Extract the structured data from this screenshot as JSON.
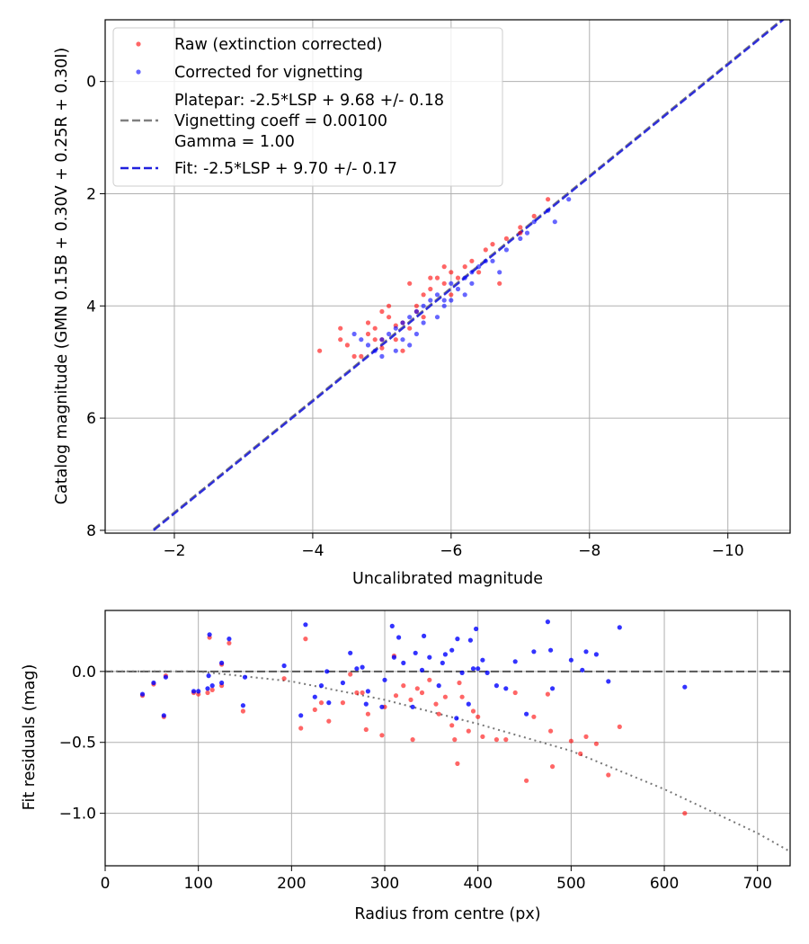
{
  "colors": {
    "raw": "#ff0000",
    "corrected": "#0000ff",
    "platepar_line": "#808080",
    "fit_line": "#2020dd",
    "grid": "#b0b0b0"
  },
  "chart_data": [
    {
      "type": "scatter",
      "id": "calibration",
      "xlabel": "Uncalibrated magnitude",
      "ylabel": "Catalog magnitude (GMN 0.15B + 0.30V + 0.25R + 0.30I)",
      "xlim": [
        -1.0,
        -10.9
      ],
      "ylim": [
        8.05,
        -1.1
      ],
      "xticks": [
        -2,
        -4,
        -6,
        -8,
        -10
      ],
      "xtick_labels": [
        "−2",
        "−4",
        "−6",
        "−8",
        "−10"
      ],
      "yticks": [
        0,
        2,
        4,
        6,
        8
      ],
      "ytick_labels": [
        "0",
        "2",
        "4",
        "6",
        "8"
      ],
      "grid": true,
      "legend_position": "upper-left",
      "legend": [
        {
          "key": "raw",
          "kind": "marker",
          "lines": [
            "Raw (extinction corrected)"
          ]
        },
        {
          "key": "corrected",
          "kind": "marker",
          "lines": [
            "Corrected for vignetting"
          ]
        },
        {
          "key": "platepar",
          "kind": "dashed-line",
          "lines": [
            "Platepar: -2.5*LSP + 9.68 +/- 0.18",
            "Vignetting coeff = 0.00100",
            "Gamma = 1.00"
          ]
        },
        {
          "key": "fit",
          "kind": "dashed-line",
          "lines": [
            "Fit: -2.5*LSP + 9.70 +/- 0.17"
          ]
        }
      ],
      "lines": [
        {
          "name": "Platepar",
          "x": [
            -1.7,
            -10.88
          ],
          "y": [
            7.98,
            -1.2
          ]
        },
        {
          "name": "Fit",
          "x": [
            -1.7,
            -10.88
          ],
          "y": [
            8.0,
            -1.18
          ]
        }
      ],
      "series": [
        {
          "name": "Raw (extinction corrected)",
          "points": [
            [
              -4.1,
              4.8
            ],
            [
              -4.4,
              4.6
            ],
            [
              -4.5,
              4.7
            ],
            [
              -4.6,
              4.9
            ],
            [
              -4.4,
              4.4
            ],
            [
              -4.8,
              4.5
            ],
            [
              -4.9,
              4.4
            ],
            [
              -5.0,
              4.6
            ],
            [
              -4.8,
              4.3
            ],
            [
              -5.0,
              4.1
            ],
            [
              -5.1,
              4.2
            ],
            [
              -5.2,
              4.35
            ],
            [
              -5.3,
              4.3
            ],
            [
              -5.5,
              4.0
            ],
            [
              -5.6,
              3.8
            ],
            [
              -5.7,
              3.7
            ],
            [
              -5.9,
              3.6
            ],
            [
              -6.0,
              3.4
            ],
            [
              -6.1,
              3.5
            ],
            [
              -6.2,
              3.3
            ],
            [
              -6.3,
              3.2
            ],
            [
              -6.5,
              3.0
            ],
            [
              -6.6,
              2.9
            ],
            [
              -6.8,
              2.8
            ],
            [
              -7.0,
              2.6
            ],
            [
              -7.2,
              2.4
            ],
            [
              -7.4,
              2.1
            ],
            [
              -5.4,
              3.6
            ],
            [
              -5.1,
              4.0
            ],
            [
              -5.2,
              4.6
            ],
            [
              -5.3,
              4.8
            ],
            [
              -5.6,
              4.2
            ],
            [
              -5.8,
              3.5
            ],
            [
              -6.0,
              3.8
            ],
            [
              -4.7,
              4.9
            ],
            [
              -5.4,
              4.4
            ],
            [
              -5.9,
              3.3
            ],
            [
              -6.4,
              3.4
            ],
            [
              -6.7,
              3.6
            ],
            [
              -7.0,
              2.7
            ],
            [
              -5.0,
              4.75
            ],
            [
              -5.5,
              4.1
            ],
            [
              -5.7,
              3.5
            ],
            [
              -4.9,
              4.6
            ]
          ]
        },
        {
          "name": "Corrected for vignetting",
          "points": [
            [
              -4.6,
              4.5
            ],
            [
              -4.8,
              4.7
            ],
            [
              -5.0,
              4.6
            ],
            [
              -5.1,
              4.5
            ],
            [
              -5.2,
              4.4
            ],
            [
              -5.3,
              4.3
            ],
            [
              -5.4,
              4.2
            ],
            [
              -5.5,
              4.1
            ],
            [
              -5.6,
              4.0
            ],
            [
              -5.7,
              3.9
            ],
            [
              -5.8,
              3.8
            ],
            [
              -5.9,
              3.9
            ],
            [
              -6.0,
              3.6
            ],
            [
              -6.1,
              3.7
            ],
            [
              -6.2,
              3.5
            ],
            [
              -6.3,
              3.4
            ],
            [
              -6.4,
              3.3
            ],
            [
              -6.6,
              3.2
            ],
            [
              -6.8,
              3.0
            ],
            [
              -7.0,
              2.8
            ],
            [
              -7.2,
              2.5
            ],
            [
              -7.4,
              2.3
            ],
            [
              -7.7,
              2.1
            ],
            [
              -4.9,
              4.8
            ],
            [
              -5.2,
              4.8
            ],
            [
              -5.5,
              4.5
            ],
            [
              -5.8,
              4.2
            ],
            [
              -6.3,
              3.6
            ],
            [
              -6.7,
              3.4
            ],
            [
              -5.0,
              4.9
            ],
            [
              -5.3,
              4.6
            ],
            [
              -5.6,
              4.3
            ],
            [
              -6.0,
              3.9
            ],
            [
              -6.5,
              3.2
            ],
            [
              -7.1,
              2.7
            ],
            [
              -4.7,
              4.6
            ],
            [
              -5.4,
              4.7
            ],
            [
              -5.9,
              4.0
            ],
            [
              -6.2,
              3.8
            ],
            [
              -7.5,
              2.5
            ]
          ]
        }
      ]
    },
    {
      "type": "scatter",
      "id": "residuals",
      "xlabel": "Radius from centre (px)",
      "ylabel": "Fit residuals (mag)",
      "xlim": [
        0,
        735
      ],
      "ylim": [
        -1.37,
        0.43
      ],
      "xticks": [
        0,
        100,
        200,
        300,
        400,
        500,
        600,
        700
      ],
      "xtick_labels": [
        "0",
        "100",
        "200",
        "300",
        "400",
        "500",
        "600",
        "700"
      ],
      "yticks": [
        0.0,
        -0.5,
        -1.0
      ],
      "ytick_labels": [
        "0.0",
        "−0.5",
        "−1.0"
      ],
      "grid": true,
      "reference_line": {
        "name": "zero",
        "y": 0.0
      },
      "curve": {
        "name": "vignetting model",
        "x": [
          0,
          100,
          200,
          300,
          400,
          500,
          600,
          700,
          735
        ],
        "y": [
          0.0,
          0.0,
          -0.07,
          -0.2,
          -0.37,
          -0.56,
          -0.83,
          -1.14,
          -1.27
        ]
      },
      "series": [
        {
          "name": "Raw (extinction corrected)",
          "points": [
            [
              40,
              -0.17
            ],
            [
              52,
              -0.09
            ],
            [
              63,
              -0.32
            ],
            [
              65,
              -0.03
            ],
            [
              95,
              -0.15
            ],
            [
              100,
              -0.16
            ],
            [
              110,
              -0.15
            ],
            [
              112,
              0.24
            ],
            [
              115,
              -0.13
            ],
            [
              125,
              -0.1
            ],
            [
              125,
              0.05
            ],
            [
              133,
              0.2
            ],
            [
              148,
              -0.28
            ],
            [
              192,
              -0.05
            ],
            [
              210,
              -0.4
            ],
            [
              215,
              0.23
            ],
            [
              225,
              -0.27
            ],
            [
              232,
              -0.22
            ],
            [
              240,
              -0.35
            ],
            [
              255,
              -0.22
            ],
            [
              263,
              -0.02
            ],
            [
              270,
              -0.15
            ],
            [
              276,
              -0.15
            ],
            [
              280,
              -0.41
            ],
            [
              282,
              -0.3
            ],
            [
              297,
              -0.45
            ],
            [
              300,
              -0.25
            ],
            [
              310,
              0.11
            ],
            [
              312,
              -0.17
            ],
            [
              320,
              -0.1
            ],
            [
              328,
              -0.2
            ],
            [
              330,
              -0.48
            ],
            [
              335,
              -0.12
            ],
            [
              340,
              -0.15
            ],
            [
              348,
              -0.06
            ],
            [
              355,
              -0.23
            ],
            [
              358,
              -0.3
            ],
            [
              365,
              -0.18
            ],
            [
              372,
              -0.38
            ],
            [
              375,
              -0.48
            ],
            [
              378,
              -0.65
            ],
            [
              380,
              -0.08
            ],
            [
              383,
              -0.18
            ],
            [
              390,
              -0.42
            ],
            [
              395,
              -0.28
            ],
            [
              400,
              -0.32
            ],
            [
              405,
              -0.46
            ],
            [
              420,
              -0.48
            ],
            [
              430,
              -0.48
            ],
            [
              440,
              -0.15
            ],
            [
              452,
              -0.77
            ],
            [
              460,
              -0.32
            ],
            [
              475,
              -0.16
            ],
            [
              478,
              -0.42
            ],
            [
              480,
              -0.67
            ],
            [
              500,
              -0.49
            ],
            [
              510,
              -0.58
            ],
            [
              516,
              -0.46
            ],
            [
              527,
              -0.51
            ],
            [
              540,
              -0.73
            ],
            [
              552,
              -0.39
            ],
            [
              622,
              -1.0
            ]
          ]
        },
        {
          "name": "Corrected for vignetting",
          "points": [
            [
              40,
              -0.16
            ],
            [
              52,
              -0.08
            ],
            [
              63,
              -0.31
            ],
            [
              65,
              -0.04
            ],
            [
              95,
              -0.14
            ],
            [
              100,
              -0.14
            ],
            [
              110,
              -0.12
            ],
            [
              111,
              -0.03
            ],
            [
              112,
              0.26
            ],
            [
              115,
              -0.1
            ],
            [
              125,
              -0.08
            ],
            [
              125,
              0.06
            ],
            [
              133,
              0.23
            ],
            [
              148,
              -0.24
            ],
            [
              150,
              -0.04
            ],
            [
              192,
              0.04
            ],
            [
              210,
              -0.31
            ],
            [
              215,
              0.33
            ],
            [
              225,
              -0.18
            ],
            [
              232,
              -0.1
            ],
            [
              238,
              0.0
            ],
            [
              240,
              -0.22
            ],
            [
              255,
              -0.08
            ],
            [
              263,
              0.13
            ],
            [
              270,
              0.02
            ],
            [
              276,
              0.03
            ],
            [
              280,
              -0.23
            ],
            [
              282,
              -0.14
            ],
            [
              297,
              -0.25
            ],
            [
              300,
              -0.06
            ],
            [
              308,
              0.32
            ],
            [
              310,
              0.1
            ],
            [
              315,
              0.24
            ],
            [
              320,
              0.06
            ],
            [
              330,
              -0.25
            ],
            [
              333,
              0.13
            ],
            [
              340,
              0.01
            ],
            [
              342,
              0.25
            ],
            [
              348,
              0.1
            ],
            [
              358,
              -0.1
            ],
            [
              362,
              0.06
            ],
            [
              365,
              0.12
            ],
            [
              372,
              0.15
            ],
            [
              377,
              -0.33
            ],
            [
              378,
              0.23
            ],
            [
              383,
              -0.01
            ],
            [
              390,
              -0.23
            ],
            [
              392,
              0.22
            ],
            [
              395,
              0.02
            ],
            [
              398,
              0.3
            ],
            [
              400,
              0.02
            ],
            [
              405,
              0.08
            ],
            [
              410,
              -0.01
            ],
            [
              420,
              -0.1
            ],
            [
              430,
              -0.12
            ],
            [
              440,
              0.07
            ],
            [
              452,
              -0.3
            ],
            [
              460,
              0.14
            ],
            [
              475,
              0.35
            ],
            [
              478,
              0.15
            ],
            [
              480,
              -0.12
            ],
            [
              500,
              0.08
            ],
            [
              512,
              0.01
            ],
            [
              516,
              0.14
            ],
            [
              527,
              0.12
            ],
            [
              540,
              -0.07
            ],
            [
              552,
              0.31
            ],
            [
              622,
              -0.11
            ]
          ]
        }
      ]
    }
  ]
}
